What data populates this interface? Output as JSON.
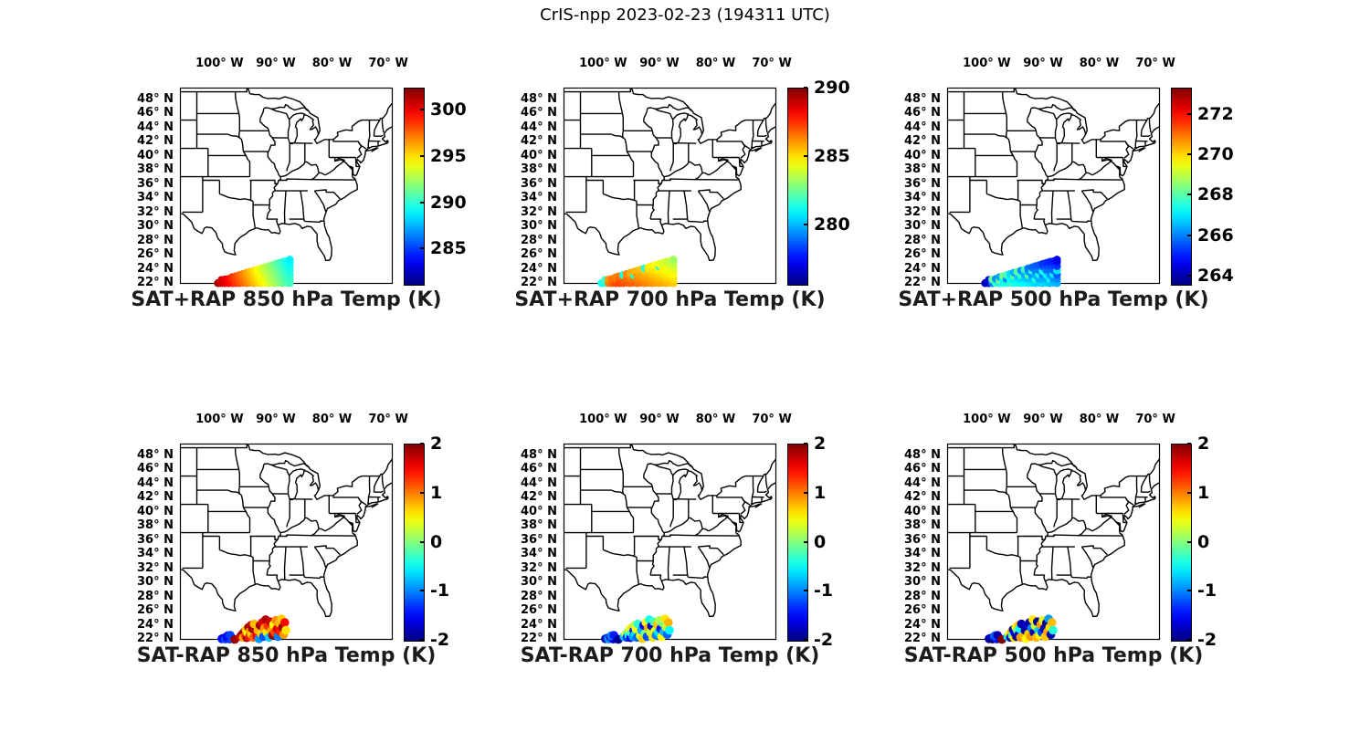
{
  "figure": {
    "title": "CrIS-npp 2023-02-23 (194311 UTC)",
    "background": "#ffffff",
    "map_line_color": "#000000"
  },
  "axes": {
    "extent": {
      "lon_min": -107.05,
      "lon_max": -69.2,
      "lat_min": 21.85,
      "lat_max": 49.6
    },
    "lon_ticks": [
      {
        "lon": -100,
        "label": "100° W"
      },
      {
        "lon": -90,
        "label": "90° W"
      },
      {
        "lon": -80,
        "label": "80° W"
      },
      {
        "lon": -70,
        "label": "70° W"
      }
    ],
    "lat_ticks": [
      {
        "lat": 48,
        "label": "48° N"
      },
      {
        "lat": 46,
        "label": "46° N"
      },
      {
        "lat": 44,
        "label": "44° N"
      },
      {
        "lat": 42,
        "label": "42° N"
      },
      {
        "lat": 40,
        "label": "40° N"
      },
      {
        "lat": 38,
        "label": "38° N"
      },
      {
        "lat": 36,
        "label": "36° N"
      },
      {
        "lat": 34,
        "label": "34° N"
      },
      {
        "lat": 32,
        "label": "32° N"
      },
      {
        "lat": 30,
        "label": "30° N"
      },
      {
        "lat": 28,
        "label": "28° N"
      },
      {
        "lat": 26,
        "label": "26° N"
      },
      {
        "lat": 24,
        "label": "24° N"
      },
      {
        "lat": 22,
        "label": "22° N"
      }
    ]
  },
  "chart_data": {
    "type": "scatter",
    "colormap": "jet",
    "grid": {
      "rows": 2,
      "cols": 3
    },
    "panels": [
      {
        "id": "sat-plus-rap-850",
        "row": 0,
        "col": 0,
        "title": "SAT+RAP 850 hPa Temp (K)",
        "colorbar": {
          "min": 281.2,
          "max": 302.4,
          "ticks": [
            300,
            295,
            290,
            285
          ]
        },
        "footprint_set": "dense",
        "values": [
          301.5,
          300.9,
          300.6,
          300.4,
          300.1,
          299.8,
          299.6,
          299.3,
          299.1,
          298.8,
          298.7,
          298.5,
          298.2,
          298.2,
          297.9,
          297.6,
          297.6,
          297.3,
          297.0,
          297.1,
          296.9,
          296.6,
          296.3,
          296.5,
          296.2,
          296.0,
          295.7,
          296.0,
          295.7,
          295.4,
          295.1,
          295.4,
          295.1,
          294.8,
          294.4,
          294.9,
          294.7,
          294.4,
          294.1,
          293.8,
          294.3,
          294.0,
          293.7,
          293.4,
          293.1,
          293.8,
          293.5,
          293.2,
          292.9,
          292.6,
          293.2,
          292.9,
          292.6,
          292.3,
          291.9,
          292.7,
          292.4,
          292.1,
          291.9,
          291.6,
          291.3,
          292.1,
          291.9,
          291.6,
          291.3,
          291.0,
          290.7,
          291.6,
          291.3,
          291.0,
          290.7,
          290.4,
          290.1,
          291.0,
          290.7,
          290.5,
          290.2,
          289.9,
          289.6,
          290.5,
          290.3,
          290.0,
          289.7,
          289.4,
          289.1,
          288.9
        ]
      },
      {
        "id": "sat-plus-rap-700",
        "row": 0,
        "col": 1,
        "title": "SAT+RAP 700 hPa Temp (K)",
        "colorbar": {
          "min": 275.7,
          "max": 290.0,
          "ticks": [
            290,
            285,
            280
          ]
        },
        "footprint_set": "dense",
        "values": [
          281.3,
          281.6,
          281.9,
          286.5,
          286.2,
          286.9,
          286.6,
          287.2,
          286.8,
          286.4,
          287.3,
          287.0,
          286.6,
          287.1,
          286.8,
          281.5,
          287.0,
          286.7,
          286.3,
          286.9,
          286.6,
          286.2,
          285.8,
          286.8,
          286.5,
          281.5,
          285.7,
          286.7,
          286.4,
          286.0,
          285.6,
          286.6,
          286.2,
          285.9,
          285.5,
          286.4,
          286.1,
          285.8,
          285.4,
          281.5,
          286.3,
          286.0,
          285.7,
          285.3,
          284.9,
          286.2,
          285.9,
          285.5,
          285.1,
          284.8,
          286.0,
          285.7,
          285.4,
          285.0,
          284.6,
          285.9,
          285.6,
          285.2,
          284.9,
          281.6,
          284.5,
          285.8,
          285.5,
          285.1,
          284.8,
          284.4,
          284.1,
          285.7,
          285.3,
          285.0,
          284.6,
          284.3,
          283.9,
          285.5,
          285.2,
          284.8,
          284.5,
          284.1,
          283.8,
          285.4,
          285.0,
          284.7,
          284.3,
          284.0,
          283.6,
          283.3
        ]
      },
      {
        "id": "sat-plus-rap-500",
        "row": 0,
        "col": 2,
        "title": "SAT+RAP 500 hPa Temp (K)",
        "colorbar": {
          "min": 263.6,
          "max": 273.3,
          "ticks": [
            272,
            270,
            268,
            266,
            264
          ]
        },
        "footprint_set": "dense",
        "values": [
          264.1,
          264.3,
          264.6,
          266.0,
          268.3,
          267.8,
          266.2,
          267.5,
          268.5,
          266.4,
          267.6,
          267.2,
          268.4,
          267.4,
          266.1,
          267.9,
          267.7,
          267.3,
          266.9,
          267.5,
          267.1,
          268.3,
          266.5,
          267.4,
          267.0,
          266.6,
          268.2,
          267.3,
          266.9,
          267.8,
          266.2,
          267.2,
          266.8,
          266.4,
          267.9,
          267.1,
          266.7,
          268.1,
          266.3,
          265.9,
          267.0,
          266.6,
          266.2,
          267.7,
          265.8,
          266.9,
          267.6,
          266.5,
          266.1,
          265.7,
          266.8,
          266.4,
          267.5,
          266.0,
          265.6,
          266.9,
          266.5,
          266.1,
          267.4,
          265.7,
          265.3,
          266.8,
          266.4,
          267.3,
          266.0,
          265.6,
          265.2,
          266.7,
          267.2,
          266.3,
          265.9,
          265.5,
          265.1,
          266.6,
          266.2,
          267.1,
          265.8,
          265.4,
          265.0,
          266.5,
          266.1,
          265.7,
          267.0,
          265.3,
          264.9,
          264.6
        ]
      },
      {
        "id": "sat-minus-rap-850",
        "row": 1,
        "col": 0,
        "title": "SAT-RAP 850 hPa Temp (K)",
        "colorbar": {
          "min": -2,
          "max": 2,
          "ticks": [
            2,
            1,
            0,
            -1,
            -2
          ]
        },
        "footprint_set": "sparse",
        "values": [
          -1.4,
          -1.7,
          -1.2,
          -1.5,
          -1.8,
          -1.3,
          -1.6,
          -1.1,
          -1.45,
          -1.25,
          1.9,
          1.6,
          1.9,
          0.8,
          1.95,
          1.2,
          0.7,
          1.8,
          0.5,
          1.9,
          1.4,
          0.9,
          1.7,
          0.6,
          1.85,
          1.1,
          0.75,
          1.5,
          0.8,
          -0.9,
          1.9,
          0.7,
          1.6,
          -1.2,
          0.9,
          1.8,
          0.6,
          1.3,
          -0.7,
          1.7,
          0.85,
          1.9,
          0.5,
          1.2,
          0.95,
          1.6,
          -1.0,
          0.8,
          1.4,
          0.7,
          1.85,
          0.9,
          1.5,
          0.6
        ]
      },
      {
        "id": "sat-minus-rap-700",
        "row": 1,
        "col": 1,
        "title": "SAT-RAP 700 hPa Temp (K)",
        "colorbar": {
          "min": -2,
          "max": 2,
          "ticks": [
            2,
            1,
            0,
            -1,
            -2
          ]
        },
        "footprint_set": "sparse",
        "values": [
          -1.9,
          -1.3,
          -0.9,
          -1.8,
          -1.1,
          -1.6,
          -0.8,
          -1.9,
          -1.0,
          -1.4,
          -1.9,
          -0.7,
          0.3,
          -1.3,
          0.0,
          -0.5,
          0.4,
          -1.6,
          -0.2,
          0.6,
          -0.9,
          -1.4,
          0.2,
          -0.6,
          0.5,
          -1.1,
          -0.3,
          0.4,
          -0.8,
          0.7,
          -1.5,
          0.0,
          0.5,
          -1.2,
          0.8,
          -0.4,
          0.3,
          -1.7,
          0.6,
          -0.2,
          0.4,
          -1.0,
          0.7,
          -0.6,
          0.2,
          -1.4,
          0.5,
          0.0,
          -0.8,
          0.6,
          0.3,
          -1.1,
          0.8,
          -0.5
        ]
      },
      {
        "id": "sat-minus-rap-500",
        "row": 1,
        "col": 2,
        "title": "SAT-RAP 500 hPa Temp (K)",
        "colorbar": {
          "min": -2,
          "max": 2,
          "ticks": [
            2,
            1,
            0,
            -1,
            -2
          ]
        },
        "footprint_set": "sparse",
        "values": [
          -1.9,
          -1.6,
          -2.0,
          -1.2,
          -1.8,
          -1.4,
          -1.9,
          -1.7,
          -1.1,
          -1.8,
          2.0,
          -0.6,
          0.5,
          -1.8,
          0.8,
          -0.3,
          -1.9,
          0.6,
          -1.5,
          0.4,
          -1.9,
          0.0,
          0.7,
          -1.7,
          -0.5,
          0.9,
          -1.8,
          0.8,
          -1.9,
          0.5,
          -1.7,
          0.7,
          -1.9,
          0.9,
          -1.0,
          0.6,
          -1.8,
          0.3,
          0.8,
          -1.9,
          -0.7,
          0.5,
          0.9,
          -1.2,
          0.4,
          -1.8,
          0.7,
          -1.9,
          0.85,
          -0.9,
          0.6,
          -1.8,
          0.75,
          -0.35
        ]
      }
    ],
    "footprints": {
      "dense": [
        [
          -100.3,
          21.95
        ],
        [
          -99.66,
          21.95
        ],
        [
          -99.66,
          22.4
        ],
        [
          -99.02,
          21.95
        ],
        [
          -99.02,
          22.5
        ],
        [
          -98.38,
          21.95
        ],
        [
          -98.38,
          22.55
        ],
        [
          -97.74,
          21.95
        ],
        [
          -97.74,
          22.45
        ],
        [
          -97.74,
          22.82
        ],
        [
          -97.1,
          21.95
        ],
        [
          -97.1,
          22.5
        ],
        [
          -97.1,
          22.95
        ],
        [
          -96.46,
          21.95
        ],
        [
          -96.46,
          22.55
        ],
        [
          -96.46,
          23.1
        ],
        [
          -95.82,
          22.0
        ],
        [
          -95.82,
          22.6
        ],
        [
          -95.82,
          23.25
        ],
        [
          -95.18,
          21.95
        ],
        [
          -95.18,
          22.5
        ],
        [
          -95.18,
          23.0
        ],
        [
          -95.18,
          23.42
        ],
        [
          -94.54,
          22.0
        ],
        [
          -94.54,
          22.6
        ],
        [
          -94.54,
          23.1
        ],
        [
          -94.54,
          23.57
        ],
        [
          -93.9,
          21.95
        ],
        [
          -93.9,
          22.5
        ],
        [
          -93.9,
          23.05
        ],
        [
          -93.9,
          23.72
        ],
        [
          -93.26,
          22.0
        ],
        [
          -93.26,
          22.6
        ],
        [
          -93.26,
          23.2
        ],
        [
          -93.26,
          23.88
        ],
        [
          -92.62,
          21.95
        ],
        [
          -92.62,
          22.5
        ],
        [
          -92.62,
          23.1
        ],
        [
          -92.62,
          23.6
        ],
        [
          -92.62,
          24.04
        ],
        [
          -91.98,
          22.0
        ],
        [
          -91.98,
          22.6
        ],
        [
          -91.98,
          23.2
        ],
        [
          -91.98,
          23.75
        ],
        [
          -91.98,
          24.19
        ],
        [
          -91.34,
          21.95
        ],
        [
          -91.34,
          22.55
        ],
        [
          -91.34,
          23.1
        ],
        [
          -91.34,
          23.7
        ],
        [
          -91.34,
          24.35
        ],
        [
          -90.7,
          22.0
        ],
        [
          -90.7,
          22.6
        ],
        [
          -90.7,
          23.2
        ],
        [
          -90.7,
          23.8
        ],
        [
          -90.7,
          24.5
        ],
        [
          -90.06,
          21.95
        ],
        [
          -90.06,
          22.5
        ],
        [
          -90.06,
          23.1
        ],
        [
          -90.06,
          23.7
        ],
        [
          -90.06,
          24.3
        ],
        [
          -90.06,
          24.66
        ],
        [
          -89.42,
          22.0
        ],
        [
          -89.42,
          22.6
        ],
        [
          -89.42,
          23.2
        ],
        [
          -89.42,
          23.8
        ],
        [
          -89.42,
          24.4
        ],
        [
          -89.42,
          24.81
        ],
        [
          -88.78,
          21.95
        ],
        [
          -88.78,
          22.55
        ],
        [
          -88.78,
          23.15
        ],
        [
          -88.78,
          23.75
        ],
        [
          -88.78,
          24.35
        ],
        [
          -88.78,
          24.97
        ],
        [
          -88.14,
          22.0
        ],
        [
          -88.14,
          22.6
        ],
        [
          -88.14,
          23.2
        ],
        [
          -88.14,
          23.8
        ],
        [
          -88.14,
          24.4
        ],
        [
          -88.14,
          25.05
        ],
        [
          -87.5,
          21.95
        ],
        [
          -87.5,
          22.55
        ],
        [
          -87.5,
          23.15
        ],
        [
          -87.5,
          23.75
        ],
        [
          -87.5,
          24.35
        ],
        [
          -87.5,
          24.95
        ],
        [
          -87.5,
          25.28
        ]
      ],
      "sparse": [
        [
          -99.6,
          22.0
        ],
        [
          -99.25,
          22.1
        ],
        [
          -99.0,
          21.95
        ],
        [
          -98.7,
          22.2
        ],
        [
          -98.45,
          22.05
        ],
        [
          -98.2,
          21.95
        ],
        [
          -98.0,
          22.25
        ],
        [
          -97.75,
          22.1
        ],
        [
          -98.55,
          22.45
        ],
        [
          -98.1,
          22.5
        ],
        [
          -97.3,
          21.9
        ],
        [
          -96.3,
          22.3
        ],
        [
          -96.0,
          22.6
        ],
        [
          -95.8,
          22.2
        ],
        [
          -95.6,
          23.0
        ],
        [
          -95.45,
          22.45
        ],
        [
          -95.3,
          23.3
        ],
        [
          -95.15,
          22.15
        ],
        [
          -95.0,
          22.8
        ],
        [
          -94.85,
          23.6
        ],
        [
          -94.7,
          22.3
        ],
        [
          -94.55,
          23.15
        ],
        [
          -94.4,
          23.9
        ],
        [
          -94.3,
          22.6
        ],
        [
          -94.15,
          23.4
        ],
        [
          -94.0,
          22.2
        ],
        [
          -93.85,
          24.1
        ],
        [
          -93.4,
          22.4
        ],
        [
          -93.2,
          23.2
        ],
        [
          -93.0,
          22.0
        ],
        [
          -92.8,
          23.9
        ],
        [
          -92.6,
          22.7
        ],
        [
          -92.4,
          24.3
        ],
        [
          -92.2,
          22.3
        ],
        [
          -92.0,
          23.5
        ],
        [
          -91.8,
          24.7
        ],
        [
          -91.6,
          22.9
        ],
        [
          -91.4,
          23.8
        ],
        [
          -91.2,
          22.2
        ],
        [
          -91.0,
          24.4
        ],
        [
          -90.8,
          23.1
        ],
        [
          -90.6,
          22.5
        ],
        [
          -90.4,
          24.0
        ],
        [
          -90.2,
          22.9
        ],
        [
          -90.0,
          24.6
        ],
        [
          -89.8,
          23.4
        ],
        [
          -89.6,
          22.3
        ],
        [
          -89.4,
          24.2
        ],
        [
          -89.2,
          23.0
        ],
        [
          -89.0,
          24.8
        ],
        [
          -88.8,
          23.6
        ],
        [
          -88.6,
          22.6
        ],
        [
          -88.4,
          24.3
        ],
        [
          -88.2,
          23.2
        ]
      ]
    }
  }
}
